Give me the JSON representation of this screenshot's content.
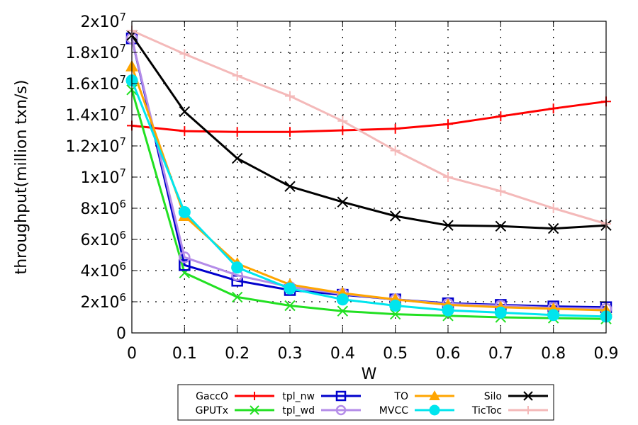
{
  "chart_data": {
    "type": "line",
    "xlabel": "W",
    "ylabel": "throughput(million txn/s)",
    "x": [
      0,
      0.1,
      0.2,
      0.3,
      0.4,
      0.5,
      0.6,
      0.7,
      0.8,
      0.9
    ],
    "xticks": [
      "0",
      "0.1",
      "0.2",
      "0.3",
      "0.4",
      "0.5",
      "0.6",
      "0.7",
      "0.8",
      "0.9"
    ],
    "xlim": [
      0,
      0.9
    ],
    "ylim": [
      0,
      20000000
    ],
    "yticks": [
      {
        "value": 0,
        "base": "0",
        "exp": ""
      },
      {
        "value": 2000000,
        "base": "2x10",
        "exp": "6"
      },
      {
        "value": 4000000,
        "base": "4x10",
        "exp": "6"
      },
      {
        "value": 6000000,
        "base": "6x10",
        "exp": "6"
      },
      {
        "value": 8000000,
        "base": "8x10",
        "exp": "6"
      },
      {
        "value": 10000000,
        "base": "1x10",
        "exp": "7"
      },
      {
        "value": 12000000,
        "base": "1.2x10",
        "exp": "7"
      },
      {
        "value": 14000000,
        "base": "1.4x10",
        "exp": "7"
      },
      {
        "value": 16000000,
        "base": "1.6x10",
        "exp": "7"
      },
      {
        "value": 18000000,
        "base": "1.8x10",
        "exp": "7"
      },
      {
        "value": 20000000,
        "base": "2x10",
        "exp": "7"
      }
    ],
    "grid": true,
    "legend_position": "bottom",
    "series": [
      {
        "name": "GaccO",
        "color": "#ff0000",
        "marker": "plus",
        "values": [
          13300000,
          12950000,
          12900000,
          12900000,
          13000000,
          13100000,
          13400000,
          13900000,
          14400000,
          14850000
        ]
      },
      {
        "name": "GPUTx",
        "color": "#22e022",
        "marker": "x",
        "values": [
          15600000,
          3850000,
          2300000,
          1750000,
          1400000,
          1200000,
          1100000,
          1000000,
          950000,
          900000
        ]
      },
      {
        "name": "tpl_nw",
        "color": "#0000cc",
        "marker": "square",
        "values": [
          18900000,
          4350000,
          3350000,
          2750000,
          2450000,
          2150000,
          1900000,
          1800000,
          1700000,
          1650000
        ]
      },
      {
        "name": "tpl_wd",
        "color": "#b48ce8",
        "marker": "circle",
        "values": [
          18900000,
          4850000,
          3700000,
          2950000,
          2500000,
          2150000,
          1850000,
          1750000,
          1600000,
          1550000
        ]
      },
      {
        "name": "TO",
        "color": "#ffa500",
        "marker": "triangle",
        "values": [
          17100000,
          7500000,
          4450000,
          3100000,
          2550000,
          2150000,
          1800000,
          1650000,
          1550000,
          1450000
        ]
      },
      {
        "name": "MVCC",
        "color": "#00e5ee",
        "marker": "circle-filled",
        "values": [
          16200000,
          7750000,
          4200000,
          2850000,
          2150000,
          1750000,
          1450000,
          1300000,
          1150000,
          1050000
        ]
      },
      {
        "name": "Silo",
        "color": "#000000",
        "marker": "x",
        "values": [
          19100000,
          14200000,
          11200000,
          9400000,
          8400000,
          7500000,
          6900000,
          6850000,
          6700000,
          6900000
        ]
      },
      {
        "name": "TicToc",
        "color": "#f4b9b9",
        "marker": "plus",
        "values": [
          19400000,
          17900000,
          16500000,
          15200000,
          13600000,
          11700000,
          10000000,
          9100000,
          8000000,
          7000000
        ]
      }
    ]
  }
}
